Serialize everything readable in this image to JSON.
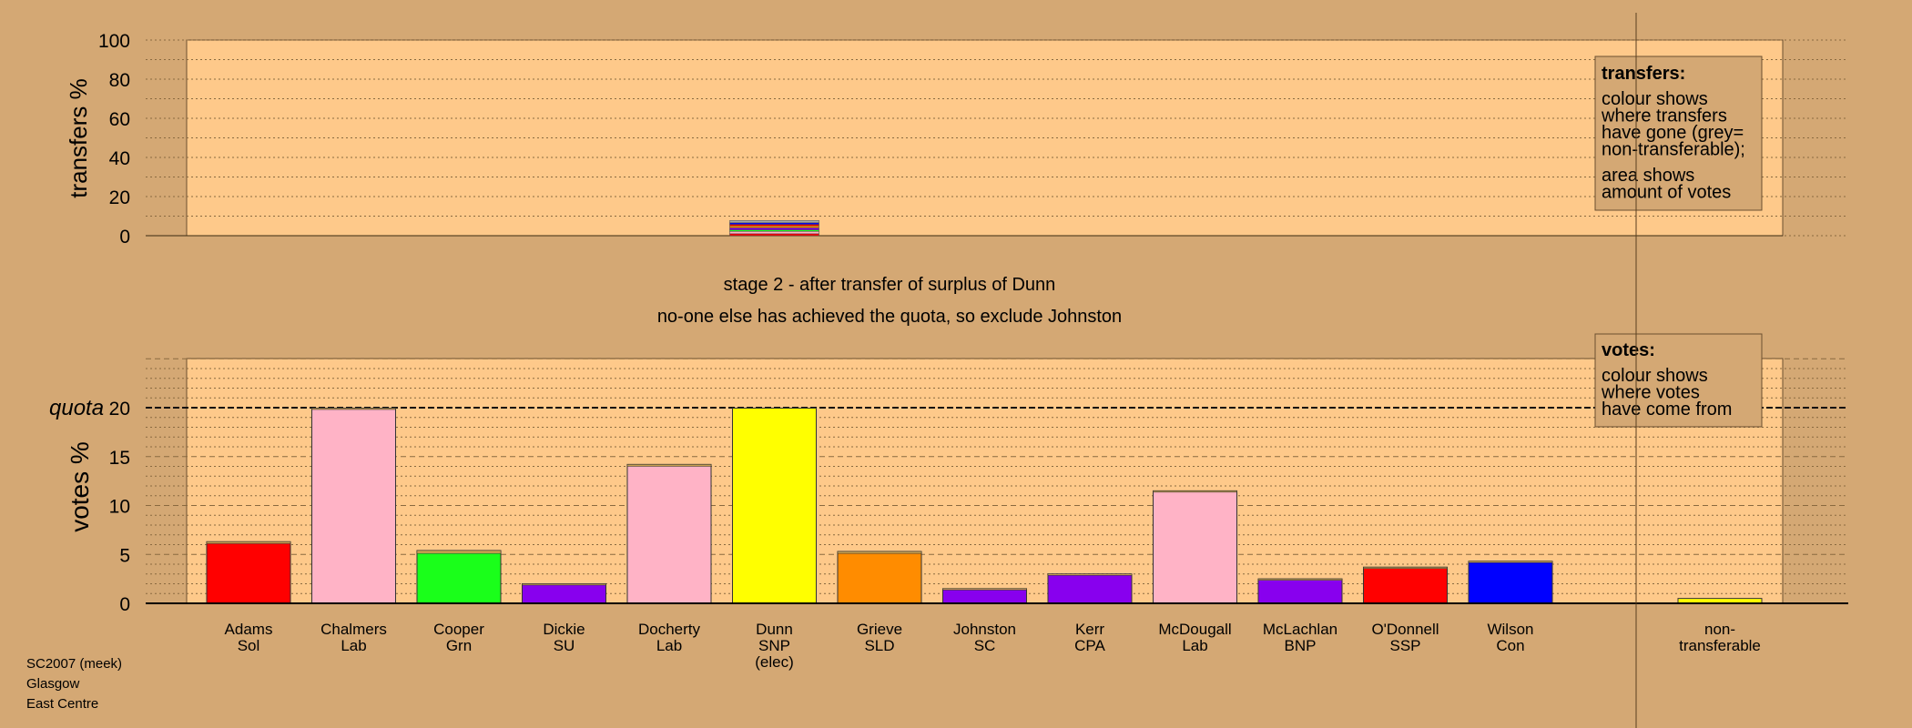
{
  "colors": {
    "background": "#d4a874",
    "plot_background": "#fec98a",
    "legend_background": "#d4a874"
  },
  "chart_data": {
    "type": "bar",
    "stage_title": "stage 2 - after transfer of surplus of Dunn",
    "stage_note": "no-one else has achieved the quota, so exclude Johnston",
    "footer": [
      "SC2007 (meek)",
      "Glasgow",
      "East Centre"
    ],
    "transfers_panel": {
      "ylabel": "transfers %",
      "ylim": [
        0,
        100
      ],
      "yticks": [
        0,
        20,
        40,
        60,
        80,
        100
      ],
      "bar_category": "Dunn SNP (elec)",
      "bar_segments": [
        {
          "color": "#ff0000",
          "value": 1.0
        },
        {
          "color": "#ffb3c6",
          "value": 1.2
        },
        {
          "color": "#1aff1a",
          "value": 0.8
        },
        {
          "color": "#8800ee",
          "value": 1.0
        },
        {
          "color": "#ff8c00",
          "value": 1.0
        },
        {
          "color": "#ff0000",
          "value": 0.8
        },
        {
          "color": "#0000ff",
          "value": 0.8
        },
        {
          "color": "#aaaaaa",
          "value": 1.2
        }
      ],
      "legend": {
        "title": "transfers:",
        "lines1": [
          "colour shows",
          "where transfers",
          "have gone (grey=",
          "non-transferable);"
        ],
        "lines2": [
          "area shows",
          "amount of votes"
        ]
      }
    },
    "votes_panel": {
      "ylabel": "votes %",
      "ylim": [
        0,
        25
      ],
      "yticks": [
        0,
        5,
        10,
        15,
        20
      ],
      "quota": 20,
      "quota_label": "quota",
      "legend": {
        "title": "votes:",
        "lines": [
          "colour shows",
          "where votes",
          "have come from"
        ]
      }
    },
    "candidates": [
      {
        "name": "Adams",
        "party": "Sol",
        "value": 6.3,
        "color": "#ff0000",
        "transfer": 0.2
      },
      {
        "name": "Chalmers",
        "party": "Lab",
        "value": 19.95,
        "color": "#ffb3c6",
        "transfer": 0.1
      },
      {
        "name": "Cooper",
        "party": "Grn",
        "value": 5.4,
        "color": "#1aff1a",
        "transfer": 0.3
      },
      {
        "name": "Dickie",
        "party": "SU",
        "value": 2.0,
        "color": "#8800ee",
        "transfer": 0.1
      },
      {
        "name": "Docherty",
        "party": "Lab",
        "value": 14.2,
        "color": "#ffb3c6",
        "transfer": 0.2
      },
      {
        "name": "Dunn",
        "party": "SNP",
        "extra": "(elec)",
        "value": 19.95,
        "color": "#ffff00",
        "transfer": 0
      },
      {
        "name": "Grieve",
        "party": "SLD",
        "value": 5.3,
        "color": "#ff8c00",
        "transfer": 0.2
      },
      {
        "name": "Johnston",
        "party": "SC",
        "value": 1.5,
        "color": "#8800ee",
        "transfer": 0.05
      },
      {
        "name": "Kerr",
        "party": "CPA",
        "value": 3.0,
        "color": "#8800ee",
        "transfer": 0.1
      },
      {
        "name": "McDougall",
        "party": "Lab",
        "value": 11.5,
        "color": "#ffb3c6",
        "transfer": 0.1
      },
      {
        "name": "McLachlan",
        "party": "BNP",
        "value": 2.5,
        "color": "#8800ee",
        "transfer": 0.05
      },
      {
        "name": "O'Donnell",
        "party": "SSP",
        "value": 3.7,
        "color": "#ff0000",
        "transfer": 0.1
      },
      {
        "name": "Wilson",
        "party": "Con",
        "value": 4.3,
        "color": "#0000ff",
        "transfer": 0.1
      }
    ],
    "nontransferable": {
      "name": "non-",
      "party": "transferable",
      "value": 0.5,
      "color": "#ffff00"
    }
  }
}
